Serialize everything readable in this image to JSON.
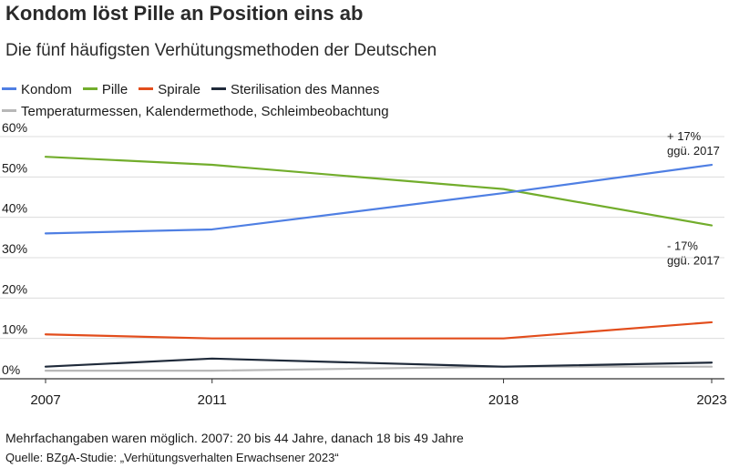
{
  "header": {
    "title": "Kondom löst Pille an Position eins ab",
    "subtitle": "Die fünf häufigsten Verhütungsmethoden der Deutschen"
  },
  "footer": {
    "note": "Mehrfachangaben waren möglich. 2007: 20 bis 44 Jahre, danach 18 bis 49 Jahre",
    "source": "Quelle: BZgA-Studie: „Verhütungsverhalten Erwachsener 2023“"
  },
  "chart_data": {
    "type": "line",
    "title": "Kondom löst Pille an Position eins ab",
    "subtitle": "Die fünf häufigsten Verhütungsmethoden der Deutschen",
    "x": [
      2007,
      2011,
      2018,
      2023
    ],
    "x_tick_labels": [
      "2007",
      "2011",
      "2018",
      "2023"
    ],
    "y_tick_labels": [
      "0%",
      "10%",
      "20%",
      "30%",
      "40%",
      "50%",
      "60%"
    ],
    "ylim": [
      0,
      60
    ],
    "grid": true,
    "legend_position": "top-left",
    "series": [
      {
        "name": "Kondom",
        "color": "#4f7fe3",
        "values": [
          36,
          37,
          46,
          53
        ]
      },
      {
        "name": "Pille",
        "color": "#72ad2c",
        "values": [
          55,
          53,
          47,
          38
        ]
      },
      {
        "name": "Spirale",
        "color": "#e24d1c",
        "values": [
          11,
          10,
          10,
          14
        ]
      },
      {
        "name": "Sterilisation des Mannes",
        "color": "#1f2a3a",
        "values": [
          3,
          5,
          3,
          4
        ]
      },
      {
        "name": "Temperaturmessen, Kalendermethode, Schleimbeobachtung",
        "color": "#b8b8b8",
        "values": [
          2,
          2,
          3,
          3
        ]
      }
    ],
    "annotations": [
      {
        "line1": "+ 17%",
        "line2": "ggü. 2017"
      },
      {
        "line1": "- 17%",
        "line2": "ggü. 2017"
      }
    ]
  }
}
